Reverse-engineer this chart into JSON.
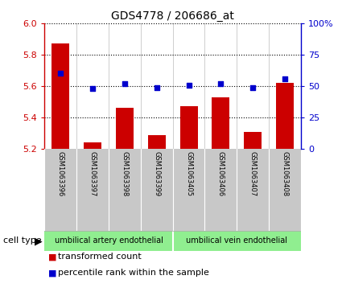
{
  "title": "GDS4778 / 206686_at",
  "samples": [
    "GSM1063396",
    "GSM1063397",
    "GSM1063398",
    "GSM1063399",
    "GSM1063405",
    "GSM1063406",
    "GSM1063407",
    "GSM1063408"
  ],
  "bar_values": [
    5.87,
    5.24,
    5.46,
    5.29,
    5.47,
    5.53,
    5.31,
    5.62
  ],
  "scatter_values": [
    60,
    48,
    52,
    49,
    51,
    52,
    49,
    56
  ],
  "bar_baseline": 5.2,
  "ylim_left": [
    5.2,
    6.0
  ],
  "ylim_right": [
    0,
    100
  ],
  "yticks_left": [
    5.2,
    5.4,
    5.6,
    5.8,
    6.0
  ],
  "yticks_right": [
    0,
    25,
    50,
    75,
    100
  ],
  "yticklabels_right": [
    "0",
    "25",
    "50",
    "75",
    "100%"
  ],
  "bar_color": "#cc0000",
  "scatter_color": "#0000cc",
  "groups": [
    {
      "label": "umbilical artery endothelial",
      "start": 0,
      "end": 3
    },
    {
      "label": "umbilical vein endothelial",
      "start": 4,
      "end": 7
    }
  ],
  "group_color": "#90ee90",
  "cell_type_label": "cell type",
  "legend_bar_label": "transformed count",
  "legend_scatter_label": "percentile rank within the sample",
  "tick_label_area_bg": "#c8c8c8",
  "background_color": "#ffffff",
  "title_fontsize": 10,
  "axis_fontsize": 8,
  "legend_fontsize": 8,
  "sample_label_fontsize": 6,
  "group_label_fontsize": 7
}
